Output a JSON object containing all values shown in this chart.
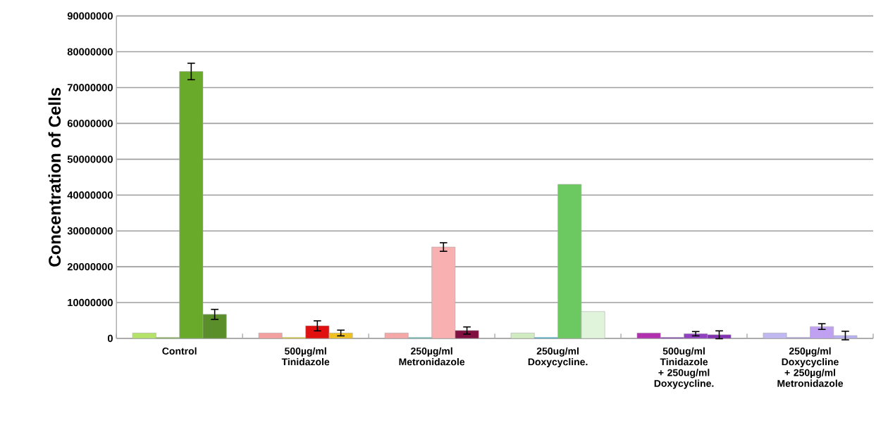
{
  "chart_data": {
    "type": "bar",
    "ylabel": "Concentration of Cells",
    "categories": [
      "Control",
      "500µg/ml Tinidazole",
      "250µg/ml Metronidazole",
      "250ug/ml Doxycycline.",
      "500ug/ml Tinidazole + 250ug/ml Doxycycline.",
      "250µg/ml Doxycycline + 250µg/ml Metronidazole"
    ],
    "series": [
      {
        "values": [
          1500000,
          1500000,
          1500000,
          1500000,
          1500000,
          1500000
        ],
        "colors": [
          "#b5e36a",
          "#f4a0a0",
          "#f4a8a8",
          "#d0ecc0",
          "#b030b0",
          "#c0b8f0"
        ]
      },
      {
        "values": [
          300000,
          300000,
          300000,
          300000,
          300000,
          300000
        ],
        "colors": [
          "#8cc24a",
          "#f0e020",
          "#60d0c0",
          "#30c0e0",
          "#8030c0",
          "#b0a8e8"
        ]
      },
      {
        "values": [
          74500000,
          3500000,
          25500000,
          43000000,
          1300000,
          3300000
        ],
        "errors": [
          2300000,
          1400000,
          1200000,
          null,
          600000,
          800000
        ],
        "colors": [
          "#6aaa2a",
          "#e01010",
          "#f8b0b0",
          "#6cc860",
          "#9040c0",
          "#c0a0f0"
        ]
      },
      {
        "values": [
          6700000,
          1500000,
          2200000,
          7500000,
          1000000,
          800000
        ],
        "errors": [
          1400000,
          800000,
          1000000,
          null,
          1100000,
          1200000
        ],
        "colors": [
          "#5a8e2a",
          "#f0c020",
          "#801040",
          "#e0f4dc",
          "#8030b0",
          "#b8b0f0"
        ]
      }
    ],
    "ylim": [
      0,
      90000000
    ],
    "yticks": [
      0,
      10000000,
      20000000,
      30000000,
      40000000,
      50000000,
      60000000,
      70000000,
      80000000,
      90000000
    ],
    "grid": "y"
  }
}
